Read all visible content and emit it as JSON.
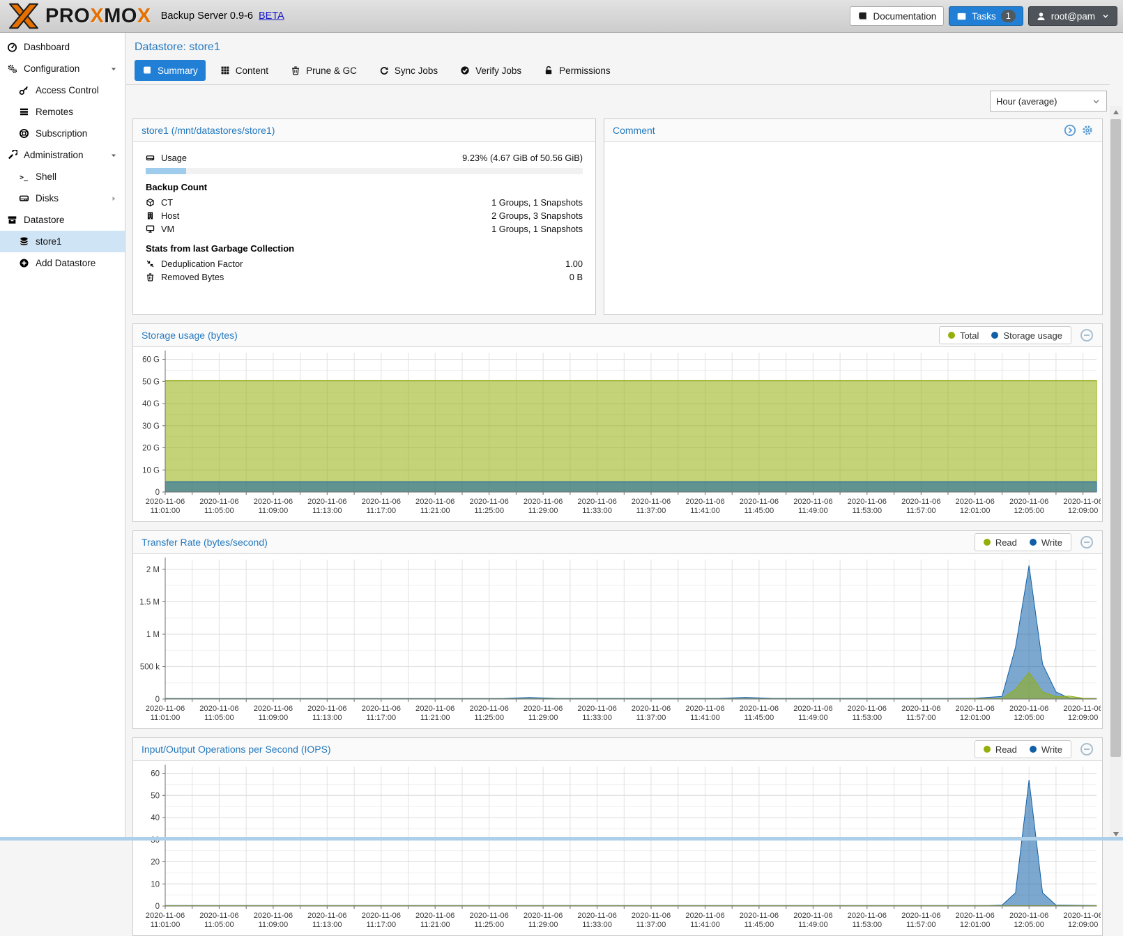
{
  "topbar": {
    "brand_pro": "PRO",
    "brand_x1": "X",
    "brand_mo": "MO",
    "brand_x2": "X",
    "product": "Backup Server 0.9-6",
    "beta_label": "BETA",
    "documentation_label": "Documentation",
    "tasks_label": "Tasks",
    "tasks_badge": "1",
    "user_label": "root@pam"
  },
  "sidebar": {
    "items": [
      {
        "label": "Dashboard",
        "icon": "gauge",
        "level": 0
      },
      {
        "label": "Configuration",
        "icon": "cogs",
        "level": 0,
        "expander": "down"
      },
      {
        "label": "Access Control",
        "icon": "key",
        "level": 1
      },
      {
        "label": "Remotes",
        "icon": "list-rows",
        "level": 1
      },
      {
        "label": "Subscription",
        "icon": "life-ring",
        "level": 1
      },
      {
        "label": "Administration",
        "icon": "wrench",
        "level": 0,
        "expander": "down"
      },
      {
        "label": "Shell",
        "icon": "terminal",
        "level": 1
      },
      {
        "label": "Disks",
        "icon": "hdd",
        "level": 1,
        "expander": "right"
      },
      {
        "label": "Datastore",
        "icon": "archive",
        "level": 0
      },
      {
        "label": "store1",
        "icon": "database",
        "level": 1,
        "selected": true
      },
      {
        "label": "Add Datastore",
        "icon": "plus-circle",
        "level": 1
      }
    ]
  },
  "header": {
    "title": "Datastore: store1"
  },
  "tabs": [
    {
      "label": "Summary",
      "icon": "book",
      "active": true
    },
    {
      "label": "Content",
      "icon": "grid"
    },
    {
      "label": "Prune & GC",
      "icon": "trash"
    },
    {
      "label": "Sync Jobs",
      "icon": "sync"
    },
    {
      "label": "Verify Jobs",
      "icon": "check-circle"
    },
    {
      "label": "Permissions",
      "icon": "unlock"
    }
  ],
  "toolbar": {
    "timeframe_value": "Hour (average)"
  },
  "store_panel": {
    "title": "store1 (/mnt/datastores/store1)",
    "usage_label": "Usage",
    "usage_icon": "hdd",
    "usage_value": "9.23% (4.67 GiB of 50.56 GiB)",
    "usage_percent": 9.23,
    "backup_count_title": "Backup Count",
    "backup_rows": [
      {
        "label": "CT",
        "icon": "cube",
        "value": "1 Groups, 1 Snapshots"
      },
      {
        "label": "Host",
        "icon": "server",
        "value": "2 Groups, 3 Snapshots"
      },
      {
        "label": "VM",
        "icon": "desktop",
        "value": "1 Groups, 1 Snapshots"
      }
    ],
    "gc_title": "Stats from last Garbage Collection",
    "gc_rows": [
      {
        "label": "Deduplication Factor",
        "icon": "compress",
        "value": "1.00"
      },
      {
        "label": "Removed Bytes",
        "icon": "trash",
        "value": "0 B"
      }
    ]
  },
  "comment_panel": {
    "title": "Comment"
  },
  "colors": {
    "accent_blue": "#2180d6",
    "panel_title_blue": "#2579bf",
    "chart_olive": "#94ae0a",
    "chart_blue": "#115fa6",
    "selected_row_bg": "#cfe4f5",
    "progress_fill": "#9fcbed"
  },
  "chart_data": [
    {
      "type": "area",
      "title": "Storage usage (bytes)",
      "legend": [
        {
          "name": "Total",
          "color": "#94ae0a"
        },
        {
          "name": "Storage usage",
          "color": "#115fa6"
        }
      ],
      "x_tick_date": "2020-11-06",
      "x_tick_times": [
        "11:01:00",
        "11:05:00",
        "11:09:00",
        "11:13:00",
        "11:17:00",
        "11:21:00",
        "11:25:00",
        "11:29:00",
        "11:33:00",
        "11:37:00",
        "11:41:00",
        "11:45:00",
        "11:49:00",
        "11:53:00",
        "11:57:00",
        "12:01:00",
        "12:05:00",
        "12:09:00"
      ],
      "x_span_minutes": 69,
      "x_grid_every_min": 2,
      "x_label_every_min": 4,
      "ylim": [
        0,
        63
      ],
      "y_minor_step": 5,
      "y_ticks": [
        {
          "v": 0,
          "label": "0"
        },
        {
          "v": 10,
          "label": "10 G"
        },
        {
          "v": 20,
          "label": "20 G"
        },
        {
          "v": 30,
          "label": "30 G"
        },
        {
          "v": 40,
          "label": "40 G"
        },
        {
          "v": 50,
          "label": "50 G"
        },
        {
          "v": 60,
          "label": "60 G"
        }
      ],
      "unit": "GiB",
      "series": [
        {
          "name": "Total",
          "color": "#94ae0a",
          "points": [
            [
              0,
              50.56
            ],
            [
              69,
              50.56
            ]
          ]
        },
        {
          "name": "Storage usage",
          "color": "#115fa6",
          "points": [
            [
              0,
              4.67
            ],
            [
              69,
              4.67
            ]
          ]
        }
      ]
    },
    {
      "type": "area",
      "title": "Transfer Rate (bytes/second)",
      "legend": [
        {
          "name": "Read",
          "color": "#94ae0a"
        },
        {
          "name": "Write",
          "color": "#115fa6"
        }
      ],
      "x_tick_date": "2020-11-06",
      "x_tick_times": [
        "11:01:00",
        "11:05:00",
        "11:09:00",
        "11:13:00",
        "11:17:00",
        "11:21:00",
        "11:25:00",
        "11:29:00",
        "11:33:00",
        "11:37:00",
        "11:41:00",
        "11:45:00",
        "11:49:00",
        "11:53:00",
        "11:57:00",
        "12:01:00",
        "12:05:00",
        "12:09:00"
      ],
      "x_span_minutes": 69,
      "x_grid_every_min": 2,
      "x_label_every_min": 4,
      "ylim": [
        0,
        2150000
      ],
      "y_minor_step": 250000,
      "y_ticks": [
        {
          "v": 0,
          "label": "0"
        },
        {
          "v": 500000,
          "label": "500 k"
        },
        {
          "v": 1000000,
          "label": "1 M"
        },
        {
          "v": 1500000,
          "label": "1.5 M"
        },
        {
          "v": 2000000,
          "label": "2 M"
        }
      ],
      "unit": "bytes/s",
      "series": [
        {
          "name": "Write",
          "color": "#115fa6",
          "points": [
            [
              0,
              9000
            ],
            [
              25,
              9000
            ],
            [
              27,
              24000
            ],
            [
              29,
              9500
            ],
            [
              41,
              9500
            ],
            [
              43,
              26000
            ],
            [
              45,
              9500
            ],
            [
              58,
              9500
            ],
            [
              60,
              12000
            ],
            [
              62,
              40000
            ],
            [
              63,
              800000
            ],
            [
              64,
              2060000
            ],
            [
              65,
              540000
            ],
            [
              66,
              110000
            ],
            [
              67,
              13000
            ],
            [
              69,
              9000
            ]
          ]
        },
        {
          "name": "Read",
          "color": "#94ae0a",
          "points": [
            [
              0,
              3500
            ],
            [
              58,
              3500
            ],
            [
              62,
              6000
            ],
            [
              63,
              150000
            ],
            [
              64,
              410000
            ],
            [
              65,
              110000
            ],
            [
              66,
              35000
            ],
            [
              67,
              45000
            ],
            [
              68,
              12000
            ],
            [
              69,
              4000
            ]
          ]
        }
      ]
    },
    {
      "type": "area",
      "title": "Input/Output Operations per Second (IOPS)",
      "legend": [
        {
          "name": "Read",
          "color": "#94ae0a"
        },
        {
          "name": "Write",
          "color": "#115fa6"
        }
      ],
      "x_tick_date": "2020-11-06",
      "x_tick_times": [
        "11:01:00",
        "11:05:00",
        "11:09:00",
        "11:13:00",
        "11:17:00",
        "11:21:00",
        "11:25:00",
        "11:29:00",
        "11:33:00",
        "11:37:00",
        "11:41:00",
        "11:45:00",
        "11:49:00",
        "11:53:00",
        "11:57:00",
        "12:01:00",
        "12:05:00",
        "12:09:00"
      ],
      "x_span_minutes": 69,
      "x_grid_every_min": 2,
      "x_label_every_min": 4,
      "ylim": [
        0,
        63
      ],
      "y_minor_step": 5,
      "y_ticks": [
        {
          "v": 0,
          "label": "0"
        },
        {
          "v": 10,
          "label": "10"
        },
        {
          "v": 20,
          "label": "20"
        },
        {
          "v": 30,
          "label": "30"
        },
        {
          "v": 40,
          "label": "40"
        },
        {
          "v": 50,
          "label": "50"
        },
        {
          "v": 60,
          "label": "60"
        }
      ],
      "unit": "iops",
      "series": [
        {
          "name": "Write",
          "color": "#115fa6",
          "points": [
            [
              0,
              0.25
            ],
            [
              61,
              0.25
            ],
            [
              62,
              0.4
            ],
            [
              63,
              6
            ],
            [
              64,
              57
            ],
            [
              65,
              6
            ],
            [
              66,
              0.4
            ],
            [
              69,
              0.25
            ]
          ]
        },
        {
          "name": "Read",
          "color": "#94ae0a",
          "points": [
            [
              0,
              0.15
            ],
            [
              69,
              0.15
            ]
          ]
        }
      ]
    }
  ]
}
